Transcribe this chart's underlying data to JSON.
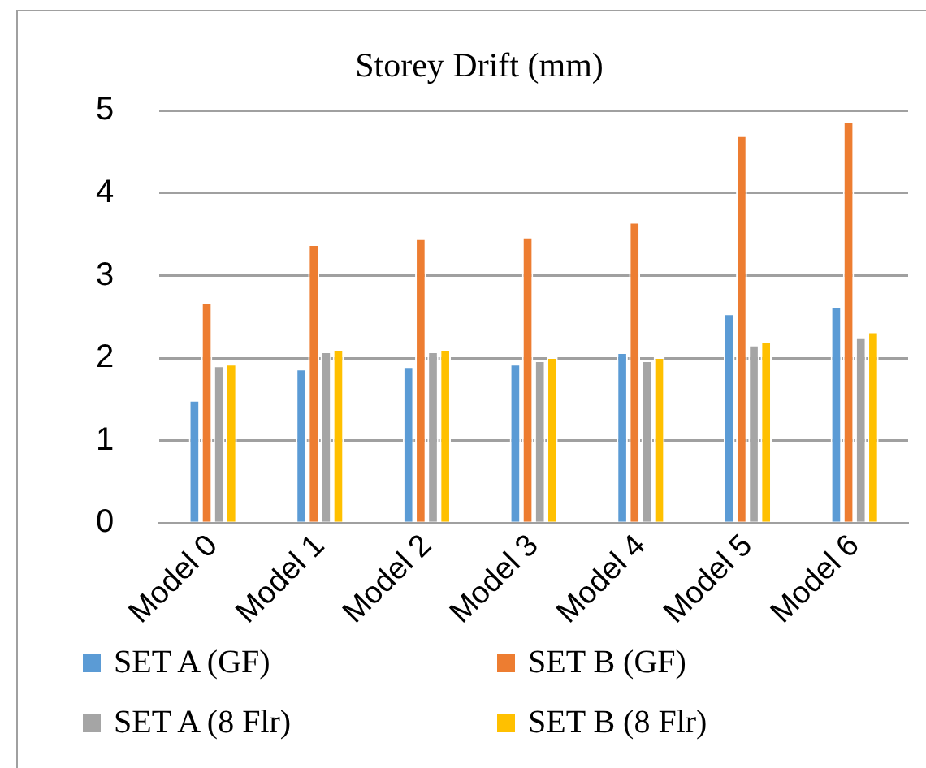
{
  "chart_data": {
    "type": "bar",
    "title": "Storey Drift (mm)",
    "categories": [
      "Model 0",
      "Model 1",
      "Model 2",
      "Model 3",
      "Model 4",
      "Model 5",
      "Model 6"
    ],
    "series": [
      {
        "name": "SET A (GF)",
        "color": "#5b9bd5",
        "values": [
          1.49,
          1.87,
          1.9,
          1.93,
          2.07,
          2.54,
          2.63
        ]
      },
      {
        "name": "SET B (GF)",
        "color": "#ed7d31",
        "values": [
          2.67,
          3.38,
          3.45,
          3.47,
          3.65,
          4.7,
          4.87
        ]
      },
      {
        "name": "SET A (8 Flr)",
        "color": "#a5a5a5",
        "values": [
          1.91,
          2.08,
          2.08,
          1.97,
          1.97,
          2.16,
          2.26
        ]
      },
      {
        "name": "SET B (8 Flr)",
        "color": "#ffc000",
        "values": [
          1.93,
          2.11,
          2.11,
          2.01,
          2.01,
          2.2,
          2.32
        ]
      }
    ],
    "ylim": [
      0,
      5
    ],
    "yticks": [
      0,
      1,
      2,
      3,
      4,
      5
    ],
    "grid": "y",
    "legend": "bottom"
  }
}
